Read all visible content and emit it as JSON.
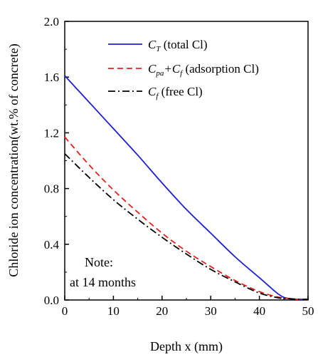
{
  "chart_data": {
    "type": "line",
    "xlabel": "Depth x (mm)",
    "ylabel": "Chloride ion concentration(wt.% of concrete)",
    "xlim": [
      0,
      50
    ],
    "ylim": [
      0.0,
      2.0
    ],
    "x_ticks": [
      "0",
      "10",
      "20",
      "30",
      "40",
      "50"
    ],
    "y_ticks": [
      "0.0",
      "0.4",
      "0.8",
      "1.2",
      "1.6",
      "2.0"
    ],
    "grid": false,
    "legend_position": "top-right",
    "series": [
      {
        "name": "C_T (total Cl)",
        "legend_main": "C",
        "legend_sub": "T",
        "legend_rest": " (total Cl)",
        "color": "#1f1fd6",
        "dash": "solid",
        "x": [
          0,
          5,
          10,
          15,
          20,
          25,
          30,
          35,
          40,
          44,
          46,
          48,
          50
        ],
        "y": [
          1.61,
          1.42,
          1.23,
          1.04,
          0.84,
          0.65,
          0.48,
          0.31,
          0.16,
          0.04,
          0.01,
          0.005,
          0.005
        ]
      },
      {
        "name": "C_pa+C_f (adsorption Cl)",
        "legend_main": "C",
        "legend_sub": "pa",
        "legend_mid": "+C",
        "legend_sub2": "f",
        "legend_rest": " (adsorption Cl)",
        "color": "#e8201c",
        "dash": "8,5",
        "x": [
          0,
          5,
          10,
          15,
          20,
          25,
          30,
          35,
          40,
          44,
          46,
          48,
          50
        ],
        "y": [
          1.17,
          0.97,
          0.79,
          0.63,
          0.48,
          0.35,
          0.24,
          0.14,
          0.06,
          0.02,
          0.01,
          0.005,
          0.005
        ]
      },
      {
        "name": "C_f (free Cl)",
        "legend_main": "C",
        "legend_sub": "f",
        "legend_rest": " (free Cl)",
        "color": "#000000",
        "dash": "10,4,2,4",
        "x": [
          0,
          5,
          10,
          15,
          20,
          25,
          30,
          35,
          40,
          44,
          46,
          48,
          50
        ],
        "y": [
          1.05,
          0.88,
          0.72,
          0.58,
          0.45,
          0.33,
          0.22,
          0.13,
          0.05,
          0.015,
          0.01,
          0.005,
          0.005
        ]
      }
    ],
    "annotation": {
      "line1": "Note:",
      "line2": "at 14 months"
    }
  }
}
